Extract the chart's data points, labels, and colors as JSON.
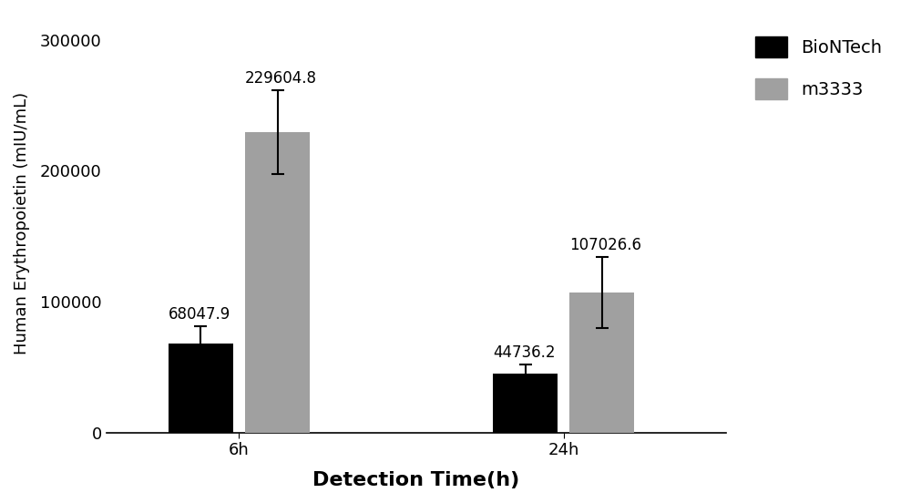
{
  "groups": [
    "6h",
    "24h"
  ],
  "series": [
    {
      "name": "BioNTech",
      "color": "#000000",
      "values": [
        68047.9,
        44736.2
      ],
      "errors": [
        13000,
        7000
      ]
    },
    {
      "name": "m3333",
      "color": "#A0A0A0",
      "values": [
        229604.8,
        107026.6
      ],
      "errors": [
        32000,
        27000
      ]
    }
  ],
  "xlabel": "Detection Time(h)",
  "ylabel": "Human Erythropoietin (mIU/mL)",
  "ylim": [
    0,
    320000
  ],
  "yticks": [
    0,
    100000,
    200000,
    300000
  ],
  "bar_width": 0.22,
  "figsize": [
    10.0,
    5.52
  ],
  "dpi": 100,
  "xlabel_fontsize": 16,
  "ylabel_fontsize": 13,
  "tick_fontsize": 13,
  "legend_fontsize": 14,
  "value_label_fontsize": 12,
  "capsize": 5,
  "error_linewidth": 1.5,
  "group_centers": [
    0.55,
    1.65
  ]
}
